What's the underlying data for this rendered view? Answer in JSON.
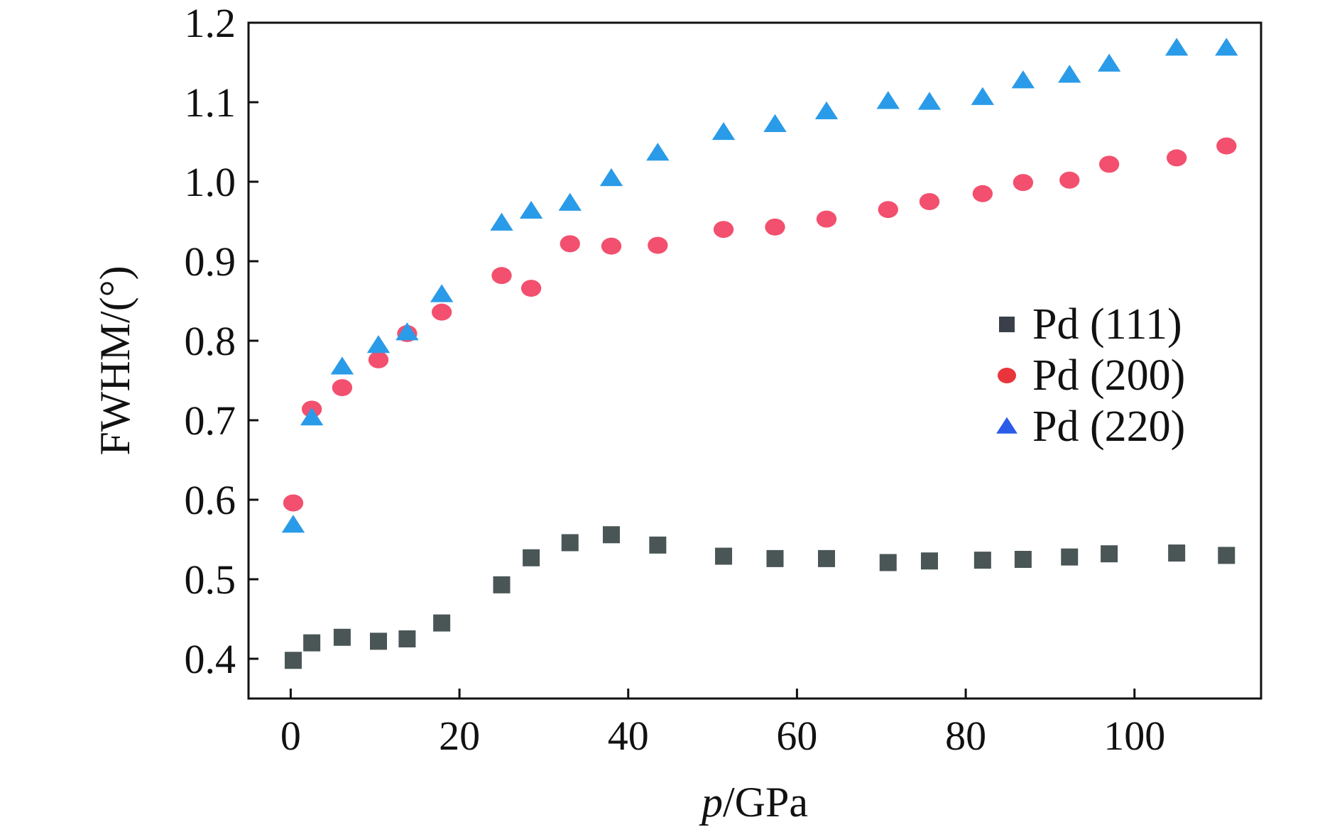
{
  "chart_data": {
    "type": "scatter",
    "title": "",
    "xlabel_italic": "p",
    "xlabel_rest": "/GPa",
    "ylabel": "FWHM/(°)",
    "xlim": [
      -5,
      115
    ],
    "ylim": [
      0.35,
      1.2
    ],
    "xticks": [
      0,
      20,
      40,
      60,
      80,
      100
    ],
    "yticks": [
      0.4,
      0.5,
      0.6,
      0.7,
      0.8,
      0.9,
      1.0,
      1.1,
      1.2
    ],
    "xtick_labels": [
      "0",
      "20",
      "40",
      "60",
      "80",
      "100"
    ],
    "ytick_labels": [
      "0.4",
      "0.5",
      "0.6",
      "0.7",
      "0.8",
      "0.9",
      "1.0",
      "1.1",
      "1.2"
    ],
    "grid": false,
    "legend_position": "right",
    "series": [
      {
        "name": "Pd (111)",
        "marker": "square",
        "color": "#4a5556",
        "legend_color": "#3a3f4a",
        "x": [
          0.3,
          2.5,
          6.1,
          10.4,
          13.8,
          17.9,
          25.0,
          28.5,
          33.1,
          38.0,
          43.5,
          51.3,
          57.4,
          63.5,
          70.8,
          75.7,
          82.0,
          86.8,
          92.3,
          97.0,
          105.0,
          110.9
        ],
        "y": [
          0.398,
          0.42,
          0.427,
          0.422,
          0.425,
          0.445,
          0.493,
          0.527,
          0.546,
          0.556,
          0.543,
          0.529,
          0.526,
          0.526,
          0.521,
          0.523,
          0.524,
          0.525,
          0.528,
          0.532,
          0.533,
          0.53
        ]
      },
      {
        "name": "Pd (200)",
        "marker": "circle",
        "color": "#f2506e",
        "legend_color": "#e8343a",
        "x": [
          0.3,
          2.5,
          6.1,
          10.4,
          13.8,
          17.9,
          25.0,
          28.5,
          33.1,
          38.0,
          43.5,
          51.3,
          57.4,
          63.5,
          70.8,
          75.7,
          82.0,
          86.8,
          92.3,
          97.0,
          105.0,
          110.9
        ],
        "y": [
          0.596,
          0.714,
          0.741,
          0.776,
          0.809,
          0.836,
          0.882,
          0.866,
          0.922,
          0.919,
          0.92,
          0.94,
          0.943,
          0.953,
          0.965,
          0.975,
          0.985,
          0.999,
          1.002,
          1.022,
          1.03,
          1.045
        ]
      },
      {
        "name": "Pd (220)",
        "marker": "triangle",
        "color": "#2a9be8",
        "legend_color": "#2a5ce8",
        "x": [
          0.3,
          2.5,
          6.1,
          10.4,
          13.8,
          17.9,
          25.0,
          28.5,
          33.1,
          38.0,
          43.5,
          51.3,
          57.4,
          63.5,
          70.8,
          75.7,
          82.0,
          86.8,
          92.3,
          97.0,
          105.0,
          110.9
        ],
        "y": [
          0.568,
          0.703,
          0.767,
          0.794,
          0.81,
          0.858,
          0.948,
          0.963,
          0.973,
          1.004,
          1.036,
          1.062,
          1.072,
          1.088,
          1.101,
          1.1,
          1.106,
          1.127,
          1.134,
          1.148,
          1.168,
          1.168
        ]
      }
    ]
  }
}
